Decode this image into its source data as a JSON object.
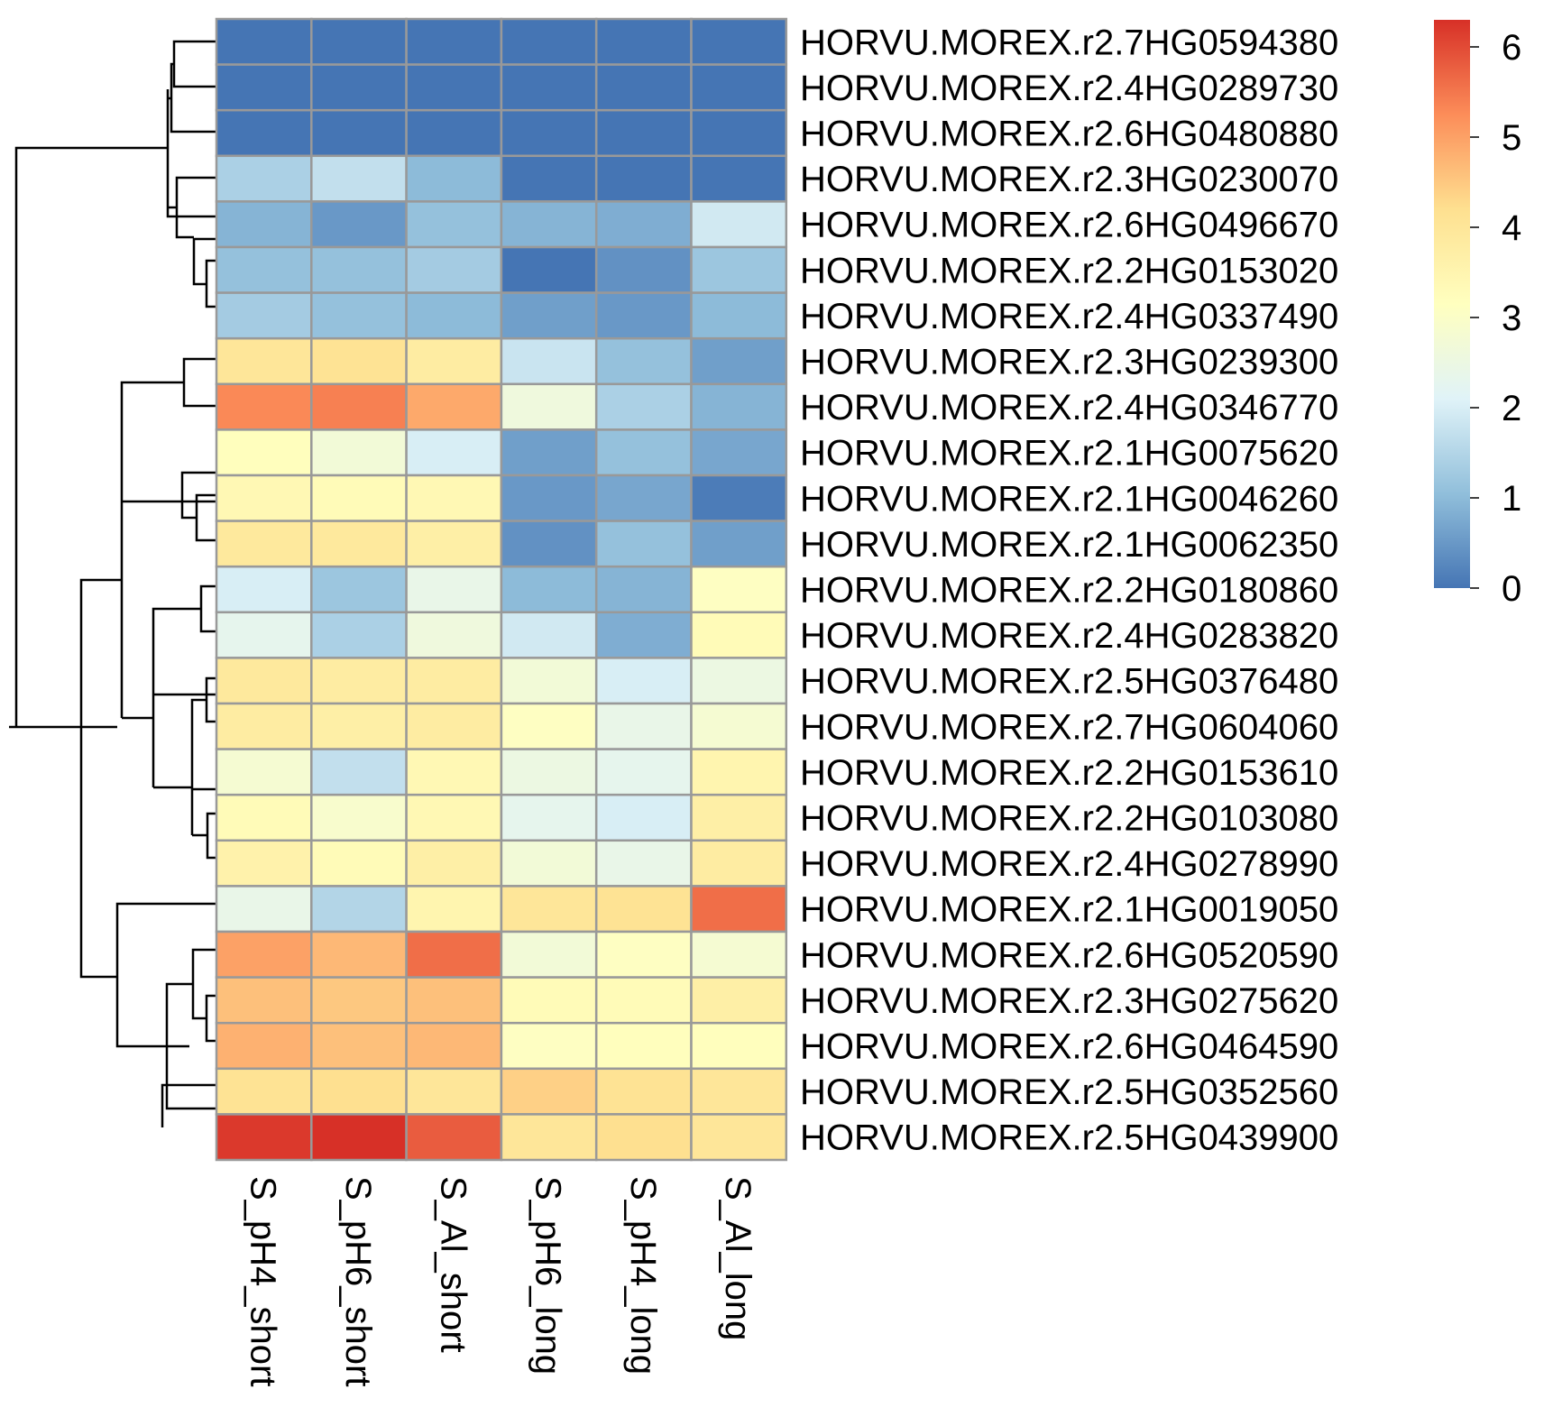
{
  "chart_data": {
    "type": "heatmap",
    "columns": [
      "S_pH4_short",
      "S_pH6_short",
      "S_Al_short",
      "S_pH6_long",
      "S_pH4_long",
      "S_Al_long"
    ],
    "rows": [
      "HORVU.MOREX.r2.7HG0594380",
      "HORVU.MOREX.r2.4HG0289730",
      "HORVU.MOREX.r2.6HG0480880",
      "HORVU.MOREX.r2.3HG0230070",
      "HORVU.MOREX.r2.6HG0496670",
      "HORVU.MOREX.r2.2HG0153020",
      "HORVU.MOREX.r2.4HG0337490",
      "HORVU.MOREX.r2.3HG0239300",
      "HORVU.MOREX.r2.4HG0346770",
      "HORVU.MOREX.r2.1HG0075620",
      "HORVU.MOREX.r2.1HG0046260",
      "HORVU.MOREX.r2.1HG0062350",
      "HORVU.MOREX.r2.2HG0180860",
      "HORVU.MOREX.r2.4HG0283820",
      "HORVU.MOREX.r2.5HG0376480",
      "HORVU.MOREX.r2.7HG0604060",
      "HORVU.MOREX.r2.2HG0153610",
      "HORVU.MOREX.r2.2HG0103080",
      "HORVU.MOREX.r2.4HG0278990",
      "HORVU.MOREX.r2.1HG0019050",
      "HORVU.MOREX.r2.6HG0520590",
      "HORVU.MOREX.r2.3HG0275620",
      "HORVU.MOREX.r2.6HG0464590",
      "HORVU.MOREX.r2.5HG0352560",
      "HORVU.MOREX.r2.5HG0439900"
    ],
    "values": [
      [
        0.0,
        0.0,
        0.0,
        0.0,
        0.0,
        0.0
      ],
      [
        0.0,
        0.0,
        0.0,
        0.0,
        0.0,
        0.0
      ],
      [
        0.0,
        0.0,
        0.0,
        0.0,
        0.0,
        0.0
      ],
      [
        1.4,
        1.7,
        1.0,
        0.0,
        0.0,
        0.0
      ],
      [
        0.9,
        0.5,
        1.1,
        0.9,
        0.8,
        1.9
      ],
      [
        1.1,
        1.1,
        1.3,
        0.0,
        0.4,
        1.2
      ],
      [
        1.3,
        1.1,
        1.0,
        0.6,
        0.5,
        1.0
      ],
      [
        4.0,
        4.1,
        3.8,
        1.8,
        1.1,
        0.6
      ],
      [
        5.3,
        5.4,
        4.9,
        2.6,
        1.4,
        0.9
      ],
      [
        3.2,
        2.7,
        2.0,
        0.6,
        1.1,
        0.7
      ],
      [
        3.4,
        3.3,
        3.4,
        0.5,
        0.7,
        0.1
      ],
      [
        3.9,
        3.9,
        3.7,
        0.4,
        1.1,
        0.6
      ],
      [
        2.0,
        1.2,
        2.4,
        1.0,
        0.9,
        3.1
      ],
      [
        2.3,
        1.4,
        2.6,
        1.9,
        0.8,
        3.3
      ],
      [
        3.9,
        3.8,
        3.8,
        2.7,
        2.0,
        2.5
      ],
      [
        3.8,
        3.7,
        3.8,
        3.1,
        2.4,
        2.8
      ],
      [
        2.8,
        1.7,
        3.4,
        2.5,
        2.3,
        3.5
      ],
      [
        3.3,
        2.9,
        3.4,
        2.3,
        2.0,
        3.7
      ],
      [
        3.6,
        3.3,
        3.7,
        2.7,
        2.4,
        3.8
      ],
      [
        2.4,
        1.5,
        3.5,
        4.0,
        4.1,
        5.6
      ],
      [
        5.0,
        4.7,
        5.6,
        2.7,
        3.1,
        2.8
      ],
      [
        4.6,
        4.5,
        4.6,
        3.3,
        3.3,
        3.7
      ],
      [
        4.8,
        4.6,
        4.7,
        3.1,
        3.2,
        3.2
      ],
      [
        4.1,
        4.2,
        4.0,
        4.4,
        4.1,
        4.0
      ],
      [
        6.2,
        6.3,
        5.8,
        4.0,
        4.2,
        4.0
      ]
    ],
    "colorbar": {
      "min": 0,
      "max": 6.3,
      "ticks": [
        "0",
        "1",
        "2",
        "3",
        "4",
        "5",
        "6"
      ],
      "colors": [
        "#4575b4",
        "#91bfdb",
        "#e0f3f8",
        "#ffffbf",
        "#fee090",
        "#fc8d59",
        "#d73027"
      ]
    },
    "row_dendrogram": true,
    "col_dendrogram": false,
    "cell_border_color": "#999999"
  }
}
